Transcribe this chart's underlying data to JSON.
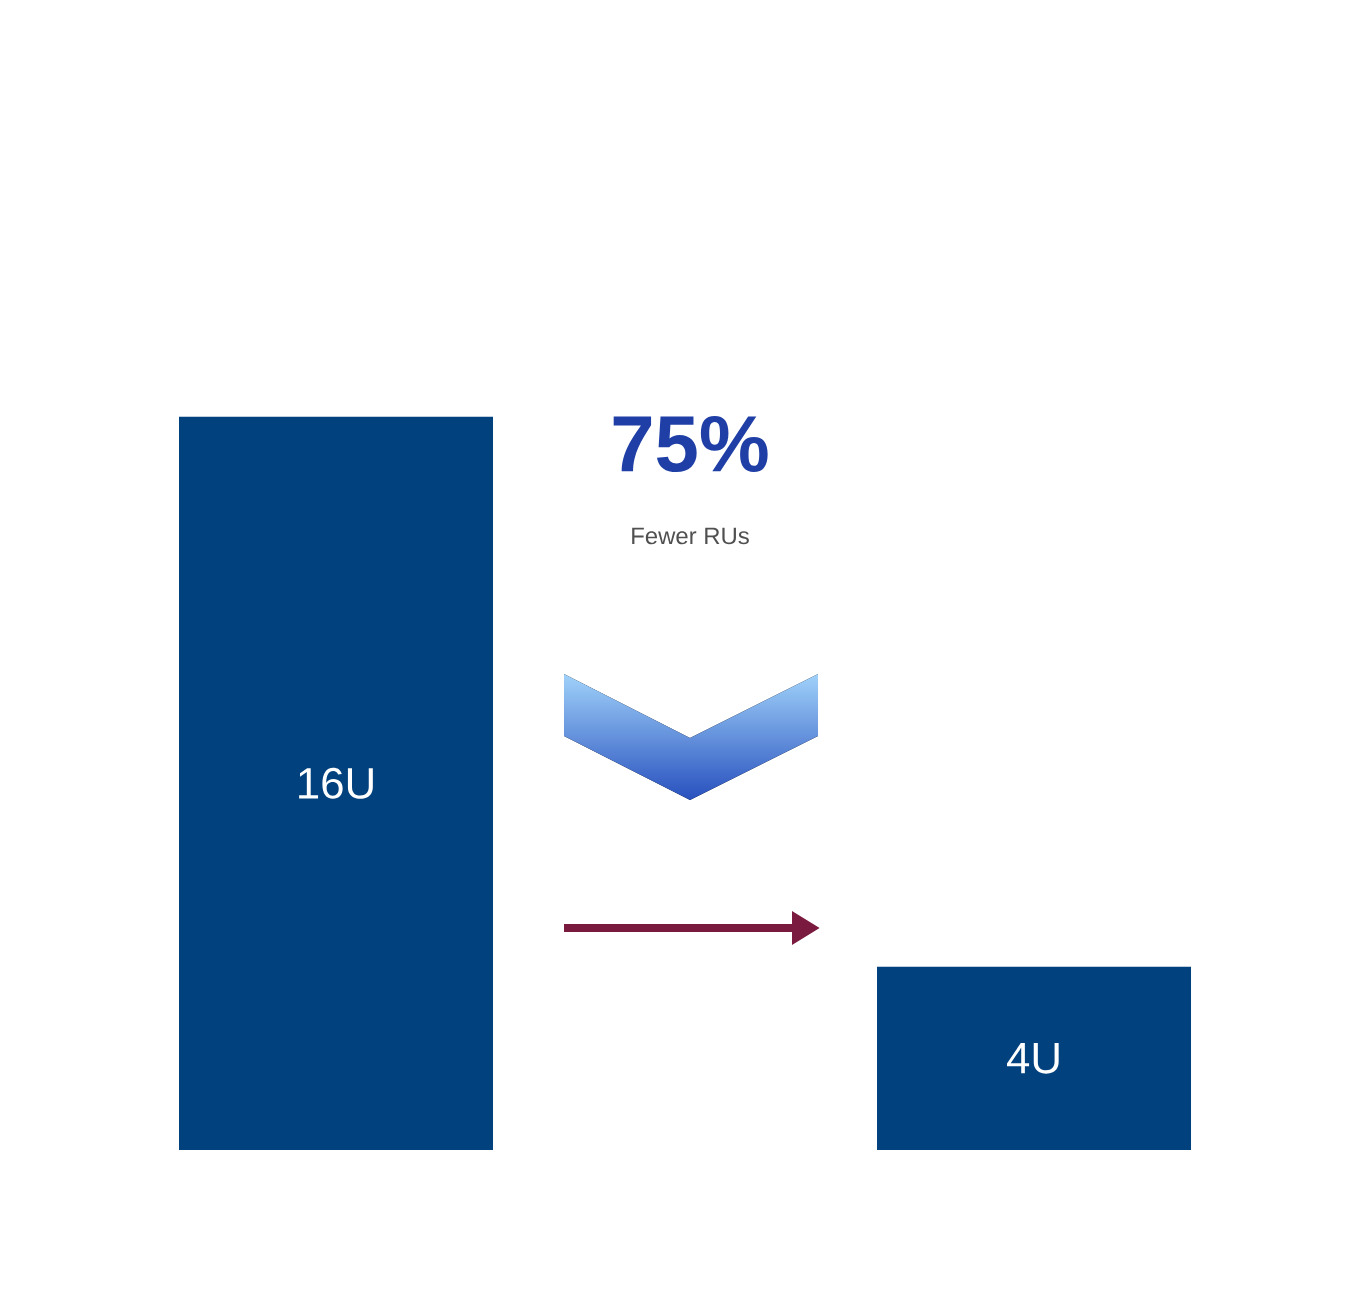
{
  "chart_data": {
    "type": "bar",
    "categories": [
      null,
      null
    ],
    "values": [
      16,
      4
    ],
    "value_labels": [
      "16U",
      "4U"
    ],
    "color": "#00417e",
    "annotations": [
      "75%",
      "Fewer RUs"
    ]
  }
}
